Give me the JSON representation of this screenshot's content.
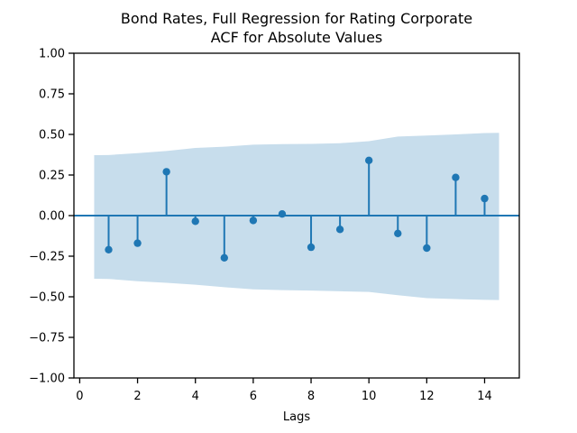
{
  "chart_data": {
    "type": "stem",
    "subtype": "acf-plot",
    "title_lines": [
      "Bond Rates, Full Regression for Rating Corporate",
      "ACF for Absolute Values"
    ],
    "xlabel": "Lags",
    "xlim": [
      -0.2,
      15.2
    ],
    "ylim": [
      -1.0,
      1.0
    ],
    "xticks": [
      0,
      2,
      4,
      6,
      8,
      10,
      12,
      14
    ],
    "yticks": [
      1.0,
      0.75,
      0.5,
      0.25,
      0.0,
      -0.25,
      -0.5,
      -0.75,
      -1.0
    ],
    "ytick_labels": [
      "1.00",
      "0.75",
      "0.50",
      "0.25",
      "0.00",
      "−0.25",
      "−0.50",
      "−0.75",
      "−1.00"
    ],
    "grid": false,
    "legend": null,
    "lags": [
      1,
      2,
      3,
      4,
      5,
      6,
      7,
      8,
      9,
      10,
      11,
      12,
      13,
      14
    ],
    "values": [
      -0.21,
      -0.17,
      0.27,
      -0.035,
      -0.26,
      -0.03,
      0.01,
      -0.195,
      -0.085,
      0.34,
      -0.11,
      -0.2,
      0.235,
      0.105
    ],
    "conf_band": {
      "x": [
        0.5,
        1,
        2,
        3,
        4,
        5,
        6,
        7,
        8,
        9,
        10,
        11,
        12,
        13,
        14,
        14.5
      ],
      "upper": [
        0.372,
        0.373,
        0.385,
        0.398,
        0.417,
        0.424,
        0.437,
        0.44,
        0.442,
        0.446,
        0.458,
        0.487,
        0.493,
        0.5,
        0.508,
        0.51
      ],
      "lower": [
        -0.389,
        -0.39,
        -0.404,
        -0.414,
        -0.426,
        -0.441,
        -0.454,
        -0.459,
        -0.462,
        -0.466,
        -0.47,
        -0.49,
        -0.508,
        -0.514,
        -0.519,
        -0.52
      ]
    },
    "colors": {
      "stem": "#1f77b4",
      "marker": "#1f77b4",
      "zero_line": "#1f77b4",
      "band": "#c7ddec",
      "spine": "#000000",
      "background": "#ffffff"
    }
  }
}
